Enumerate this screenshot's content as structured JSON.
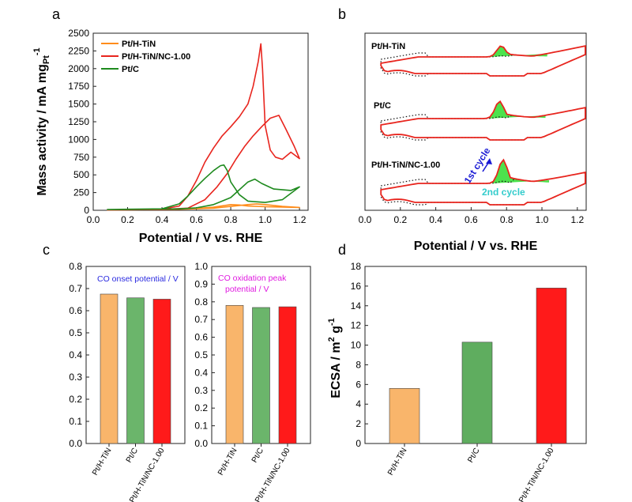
{
  "chart_data": [
    {
      "panel": "a",
      "type": "line",
      "xlabel": "Potential / V vs. RHE",
      "ylabel": "Mass activity / mA mg",
      "ylabel_sub": "Pt",
      "ylabel_sup": "-1",
      "xlim": [
        0,
        1.25
      ],
      "ylim": [
        0,
        2500
      ],
      "xticks": [
        "0.0",
        "0.2",
        "0.4",
        "0.6",
        "0.8",
        "1.0",
        "1.2"
      ],
      "yticks": [
        "0",
        "250",
        "500",
        "750",
        "1000",
        "1250",
        "1500",
        "1750",
        "2000",
        "2250",
        "2500"
      ],
      "legend_position": "top-left",
      "series": [
        {
          "name": "Pt/H-TiN",
          "color": "#ff8c1a",
          "points": [
            [
              0.08,
              5
            ],
            [
              0.2,
              8
            ],
            [
              0.4,
              10
            ],
            [
              0.5,
              15
            ],
            [
              0.6,
              25
            ],
            [
              0.7,
              45
            ],
            [
              0.8,
              80
            ],
            [
              0.85,
              75
            ],
            [
              0.9,
              60
            ],
            [
              1.0,
              50
            ],
            [
              1.1,
              45
            ],
            [
              1.2,
              40
            ],
            [
              1.1,
              55
            ],
            [
              1.0,
              80
            ],
            [
              0.95,
              90
            ],
            [
              0.9,
              80
            ],
            [
              0.8,
              55
            ],
            [
              0.7,
              30
            ],
            [
              0.5,
              15
            ],
            [
              0.3,
              10
            ],
            [
              0.1,
              8
            ]
          ]
        },
        {
          "name": "Pt/H-TiN/NC-1.00",
          "color": "#e8251e",
          "points": [
            [
              0.08,
              5
            ],
            [
              0.2,
              8
            ],
            [
              0.4,
              15
            ],
            [
              0.5,
              60
            ],
            [
              0.55,
              200
            ],
            [
              0.6,
              420
            ],
            [
              0.65,
              680
            ],
            [
              0.7,
              880
            ],
            [
              0.75,
              1050
            ],
            [
              0.8,
              1180
            ],
            [
              0.85,
              1320
            ],
            [
              0.9,
              1500
            ],
            [
              0.93,
              1750
            ],
            [
              0.96,
              2100
            ],
            [
              0.975,
              2350
            ],
            [
              0.985,
              2000
            ],
            [
              1.0,
              1200
            ],
            [
              1.03,
              850
            ],
            [
              1.06,
              750
            ],
            [
              1.1,
              720
            ],
            [
              1.15,
              820
            ],
            [
              1.2,
              730
            ],
            [
              1.17,
              900
            ],
            [
              1.12,
              1150
            ],
            [
              1.08,
              1340
            ],
            [
              1.03,
              1300
            ],
            [
              0.98,
              1180
            ],
            [
              0.93,
              1050
            ],
            [
              0.88,
              900
            ],
            [
              0.83,
              720
            ],
            [
              0.78,
              520
            ],
            [
              0.72,
              330
            ],
            [
              0.65,
              150
            ],
            [
              0.55,
              30
            ],
            [
              0.4,
              12
            ],
            [
              0.2,
              8
            ]
          ]
        },
        {
          "name": "Pt/C",
          "color": "#1e8a1e",
          "points": [
            [
              0.08,
              10
            ],
            [
              0.2,
              15
            ],
            [
              0.4,
              20
            ],
            [
              0.5,
              90
            ],
            [
              0.55,
              200
            ],
            [
              0.6,
              330
            ],
            [
              0.65,
              450
            ],
            [
              0.7,
              560
            ],
            [
              0.74,
              630
            ],
            [
              0.76,
              640
            ],
            [
              0.78,
              560
            ],
            [
              0.8,
              400
            ],
            [
              0.85,
              220
            ],
            [
              0.9,
              130
            ],
            [
              1.0,
              110
            ],
            [
              1.1,
              150
            ],
            [
              1.2,
              330
            ],
            [
              1.15,
              280
            ],
            [
              1.05,
              300
            ],
            [
              0.98,
              380
            ],
            [
              0.94,
              440
            ],
            [
              0.9,
              400
            ],
            [
              0.85,
              290
            ],
            [
              0.8,
              180
            ],
            [
              0.7,
              80
            ],
            [
              0.6,
              35
            ],
            [
              0.5,
              20
            ],
            [
              0.3,
              15
            ],
            [
              0.1,
              10
            ]
          ]
        }
      ]
    },
    {
      "panel": "b",
      "type": "line",
      "xlabel": "Potential / V vs. RHE",
      "xlim": [
        0,
        1.25
      ],
      "xticks": [
        "0.0",
        "0.2",
        "0.4",
        "0.6",
        "0.8",
        "1.0",
        "1.2"
      ],
      "curve_labels": [
        "Pt/H-TiN",
        "Pt/C",
        "Pt/H-TiN/NC-1.00"
      ],
      "annotations": [
        "1st cycle",
        "2nd cycle"
      ],
      "annotation_colors": [
        "#1a1ad4",
        "#33cccc"
      ],
      "first_cycle_color": "#e8251e",
      "second_cycle_style": "dotted black",
      "fill_color": "#4de24d",
      "peak_positions": [
        0.77,
        0.76,
        0.78
      ]
    },
    {
      "panel": "c",
      "type": "bar",
      "subcharts": [
        {
          "annotation": "CO onset potential / V",
          "annotation_color": "#2a2ae0",
          "categories": [
            "Pt/H-TiN",
            "Pt/C",
            "Pt/H-TiN/NC-1.00"
          ],
          "values": [
            0.675,
            0.658,
            0.652
          ],
          "colors": [
            "#f9b56b",
            "#6bb56b",
            "#ff1a1a"
          ],
          "ylim": [
            0,
            0.8
          ],
          "yticks": [
            "0.0",
            "0.1",
            "0.2",
            "0.3",
            "0.4",
            "0.5",
            "0.6",
            "0.7",
            "0.8"
          ]
        },
        {
          "annotation_lines": [
            "CO oxidation peak",
            "potential / V"
          ],
          "annotation_color": "#e01ae0",
          "categories": [
            "Pt/H-TiN",
            "Pt/C",
            "Pt/H-TiN/NC-1.00"
          ],
          "values": [
            0.78,
            0.768,
            0.772
          ],
          "colors": [
            "#f9b56b",
            "#6bb56b",
            "#ff1a1a"
          ],
          "ylim": [
            0,
            1.0
          ],
          "yticks": [
            "0.0",
            "0.1",
            "0.2",
            "0.3",
            "0.4",
            "0.5",
            "0.6",
            "0.7",
            "0.8",
            "0.9",
            "1.0"
          ]
        }
      ]
    },
    {
      "panel": "d",
      "type": "bar",
      "ylabel": "ECSA / m",
      "ylabel_sup1": "2",
      "ylabel_mid": " g",
      "ylabel_sup2": "-1",
      "categories": [
        "Pt/H-TiN",
        "Pt/C",
        "Pt/H-TiN/NC-1.00"
      ],
      "values": [
        5.6,
        10.3,
        15.8
      ],
      "colors": [
        "#f9b56b",
        "#5fad5f",
        "#ff1a1a"
      ],
      "ylim": [
        0,
        18
      ],
      "yticks": [
        "0",
        "2",
        "4",
        "6",
        "8",
        "10",
        "12",
        "14",
        "16",
        "18"
      ]
    }
  ],
  "panel_labels": [
    "a",
    "b",
    "c",
    "d"
  ]
}
